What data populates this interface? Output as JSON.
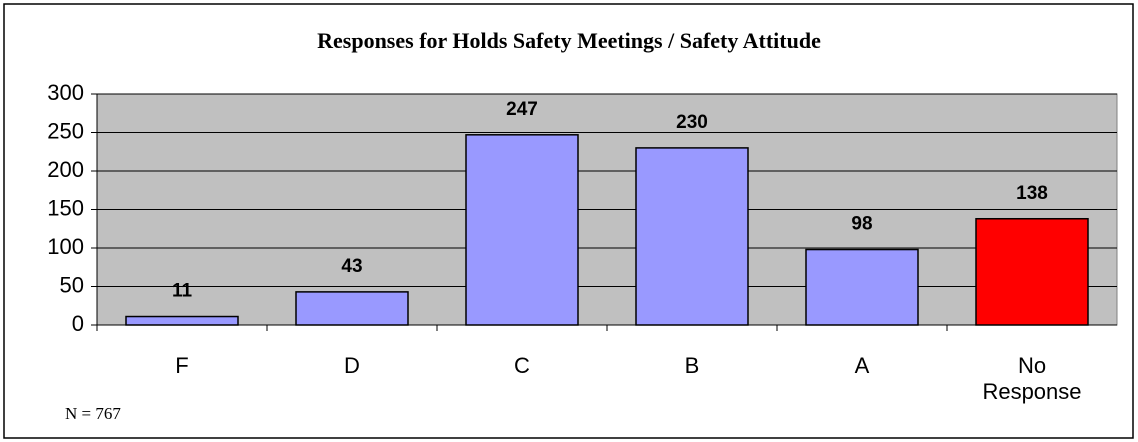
{
  "chart_data": {
    "type": "bar",
    "title": "Responses for Holds Safety Meetings / Safety Attitude",
    "categories": [
      "F",
      "D",
      "C",
      "B",
      "A",
      "No Response"
    ],
    "values": [
      11,
      43,
      247,
      230,
      98,
      138
    ],
    "colors": [
      "#9999ff",
      "#9999ff",
      "#9999ff",
      "#9999ff",
      "#9999ff",
      "#ff0000"
    ],
    "ylim": [
      0,
      300
    ],
    "yticks": [
      0,
      50,
      100,
      150,
      200,
      250,
      300
    ],
    "grid": true,
    "annotation": "N = 767"
  }
}
